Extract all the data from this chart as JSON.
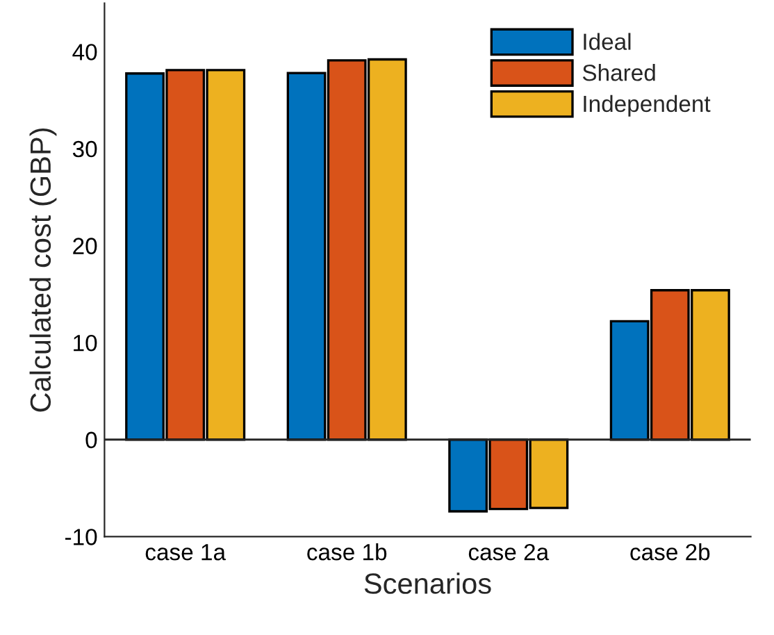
{
  "chart_data": {
    "type": "bar",
    "xlabel": "Scenarios",
    "ylabel": "Calculated cost (GBP)",
    "categories": [
      "case 1a",
      "case 1b",
      "case 2a",
      "case 2b"
    ],
    "series": [
      {
        "name": "Ideal",
        "color": "#0072bd",
        "values": [
          37.75,
          37.8,
          -7.4,
          12.2
        ]
      },
      {
        "name": "Shared",
        "color": "#d95319",
        "values": [
          38.1,
          39.1,
          -7.15,
          15.4
        ]
      },
      {
        "name": "Independent",
        "color": "#edb120",
        "values": [
          38.1,
          39.2,
          -7.05,
          15.4
        ]
      }
    ],
    "ylim": [
      -10,
      45
    ],
    "yticks": [
      -10,
      0,
      10,
      20,
      30,
      40
    ],
    "grid": false,
    "legend": "top right",
    "ref_lines": [
      {
        "axis": "y",
        "value": 0,
        "color": "#262626"
      }
    ]
  }
}
